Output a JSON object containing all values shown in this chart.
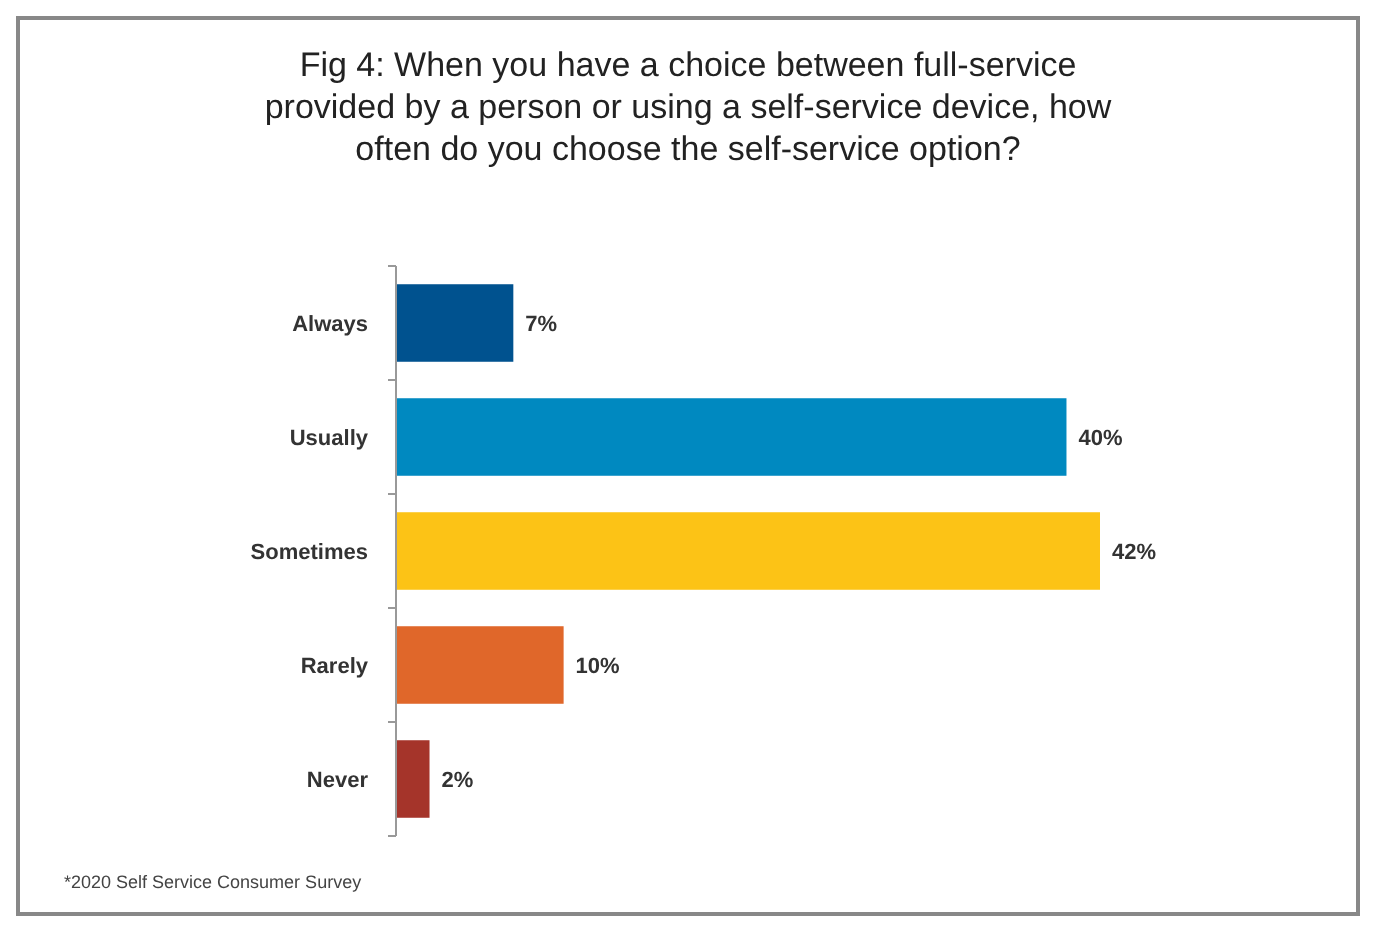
{
  "chart_data": {
    "type": "bar",
    "orientation": "horizontal",
    "title": "Fig 4:  When you have a choice between full-service provided by a person or using a self-service device, how often do you choose the self-service option?",
    "categories": [
      "Always",
      "Usually",
      "Sometimes",
      "Rarely",
      "Never"
    ],
    "values": [
      7,
      40,
      42,
      10,
      2
    ],
    "colors": [
      "#00528f",
      "#0089c0",
      "#fcc316",
      "#e0672a",
      "#a5342a"
    ],
    "value_labels": [
      "7%",
      "40%",
      "42%",
      "10%",
      "2%"
    ],
    "annotations": [
      "*2020 Self Service Consumer Survey"
    ]
  }
}
